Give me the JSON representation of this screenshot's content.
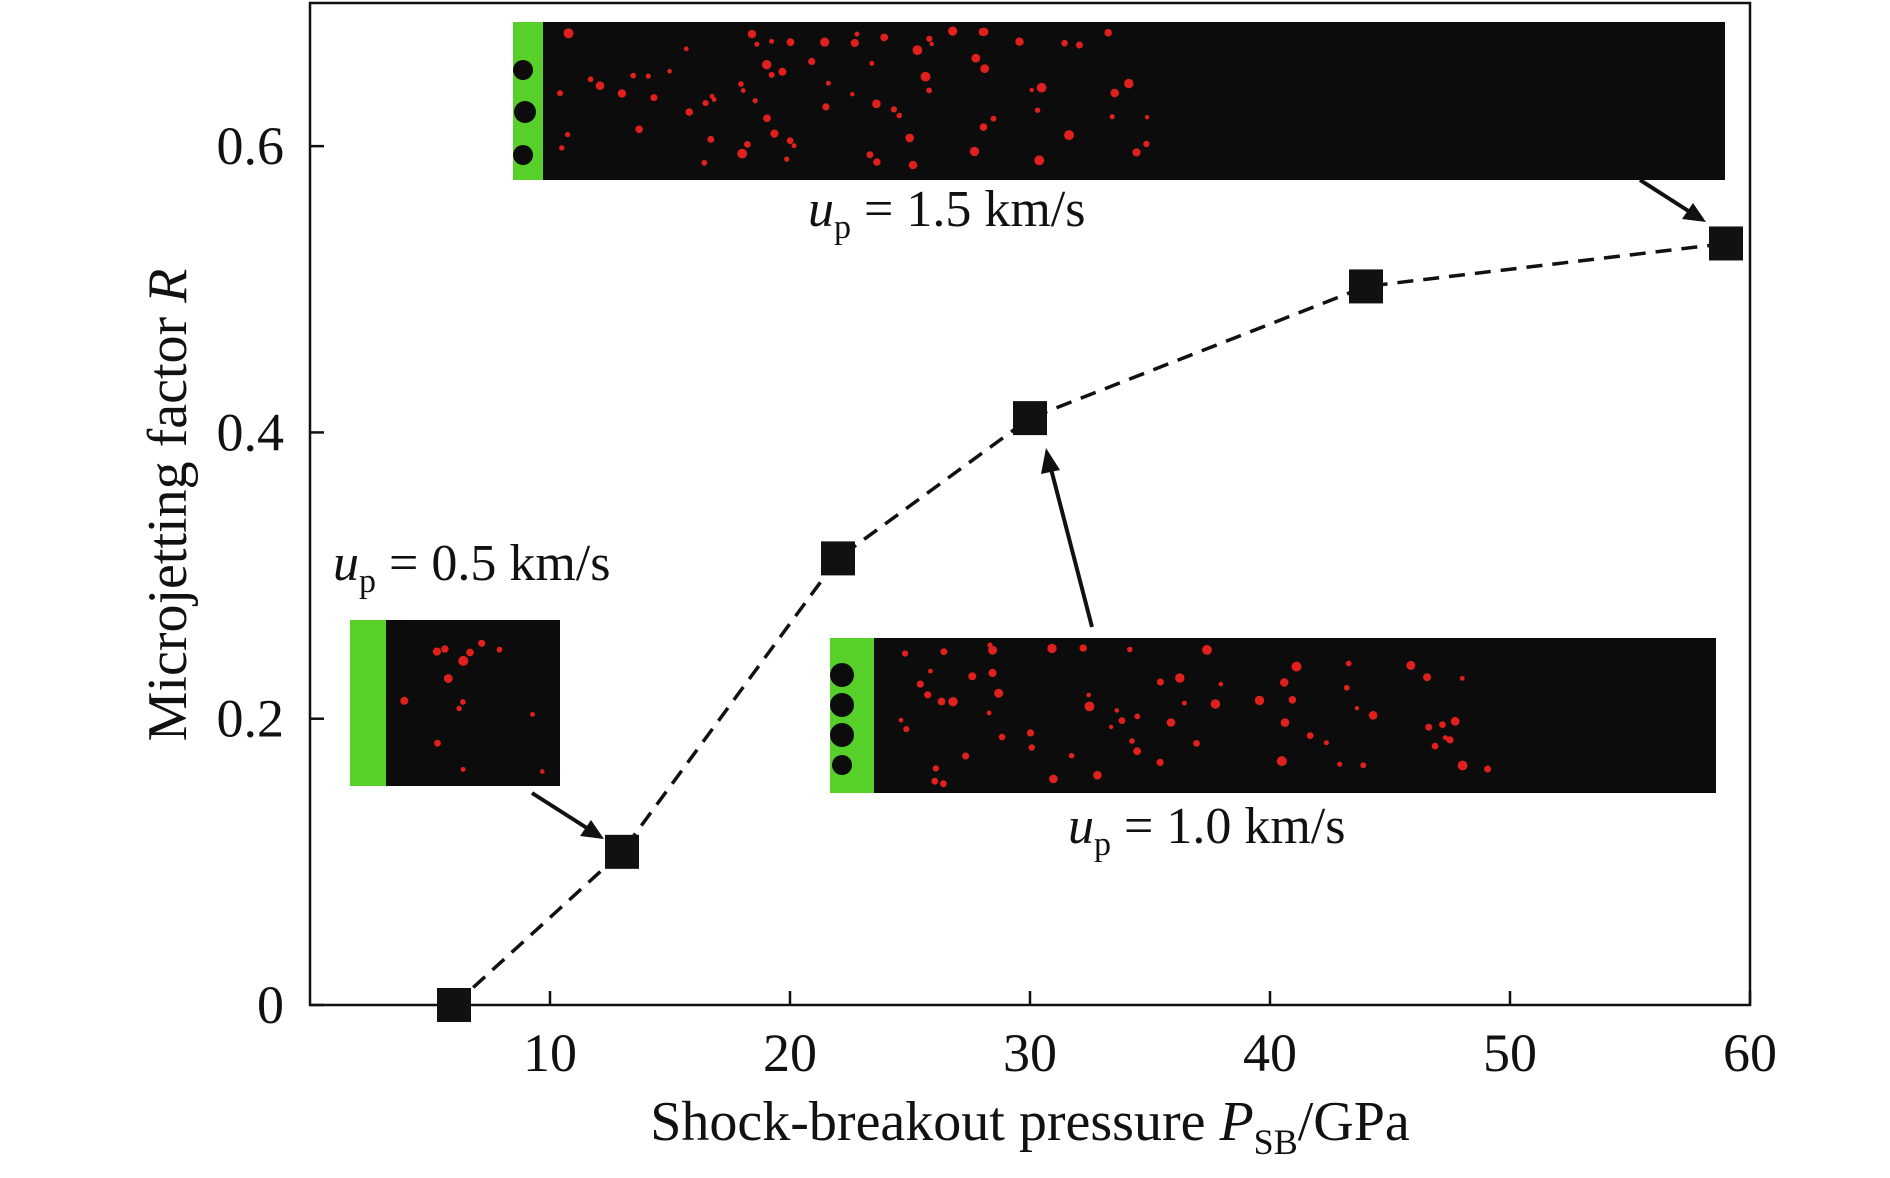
{
  "chart_data": {
    "type": "scatter",
    "xlabel": {
      "main": "Shock-breakout pressure ",
      "italic": "P",
      "sub": "SB",
      "tail": "/GPa"
    },
    "ylabel": {
      "main": "Microjetting factor ",
      "italic": "R"
    },
    "xlim": [
      0,
      60
    ],
    "ylim": [
      0,
      0.7
    ],
    "xticks": [
      10,
      20,
      30,
      40,
      50,
      60
    ],
    "yticks": [
      0,
      0.2,
      0.4,
      0.6
    ],
    "xtick_labels": [
      "10",
      "20",
      "30",
      "40",
      "50",
      "60"
    ],
    "ytick_labels": [
      "0",
      "0.2",
      "0.4",
      "0.6"
    ],
    "grid": false,
    "line_style": "dashed",
    "marker": "square",
    "series": [
      {
        "x": [
          6,
          13,
          22,
          30,
          44,
          59
        ],
        "y": [
          0,
          0.107,
          0.312,
          0.41,
          0.502,
          0.532
        ]
      }
    ],
    "insets": [
      {
        "label_var": "u",
        "label_sub": "p",
        "label_value": " = 0.5 km/s",
        "points_to_index": 1
      },
      {
        "label_var": "u",
        "label_sub": "p",
        "label_value": " = 1.0 km/s",
        "points_to_index": 3
      },
      {
        "label_var": "u",
        "label_sub": "p",
        "label_value": " = 1.5 km/s",
        "points_to_index": 5
      }
    ],
    "colors": {
      "axis": "#111111",
      "marker": "#111111",
      "line": "#111111",
      "inset_bg": "#0c0c0c",
      "inset_surface": "#58d02a",
      "particles": "#e0201c"
    }
  }
}
